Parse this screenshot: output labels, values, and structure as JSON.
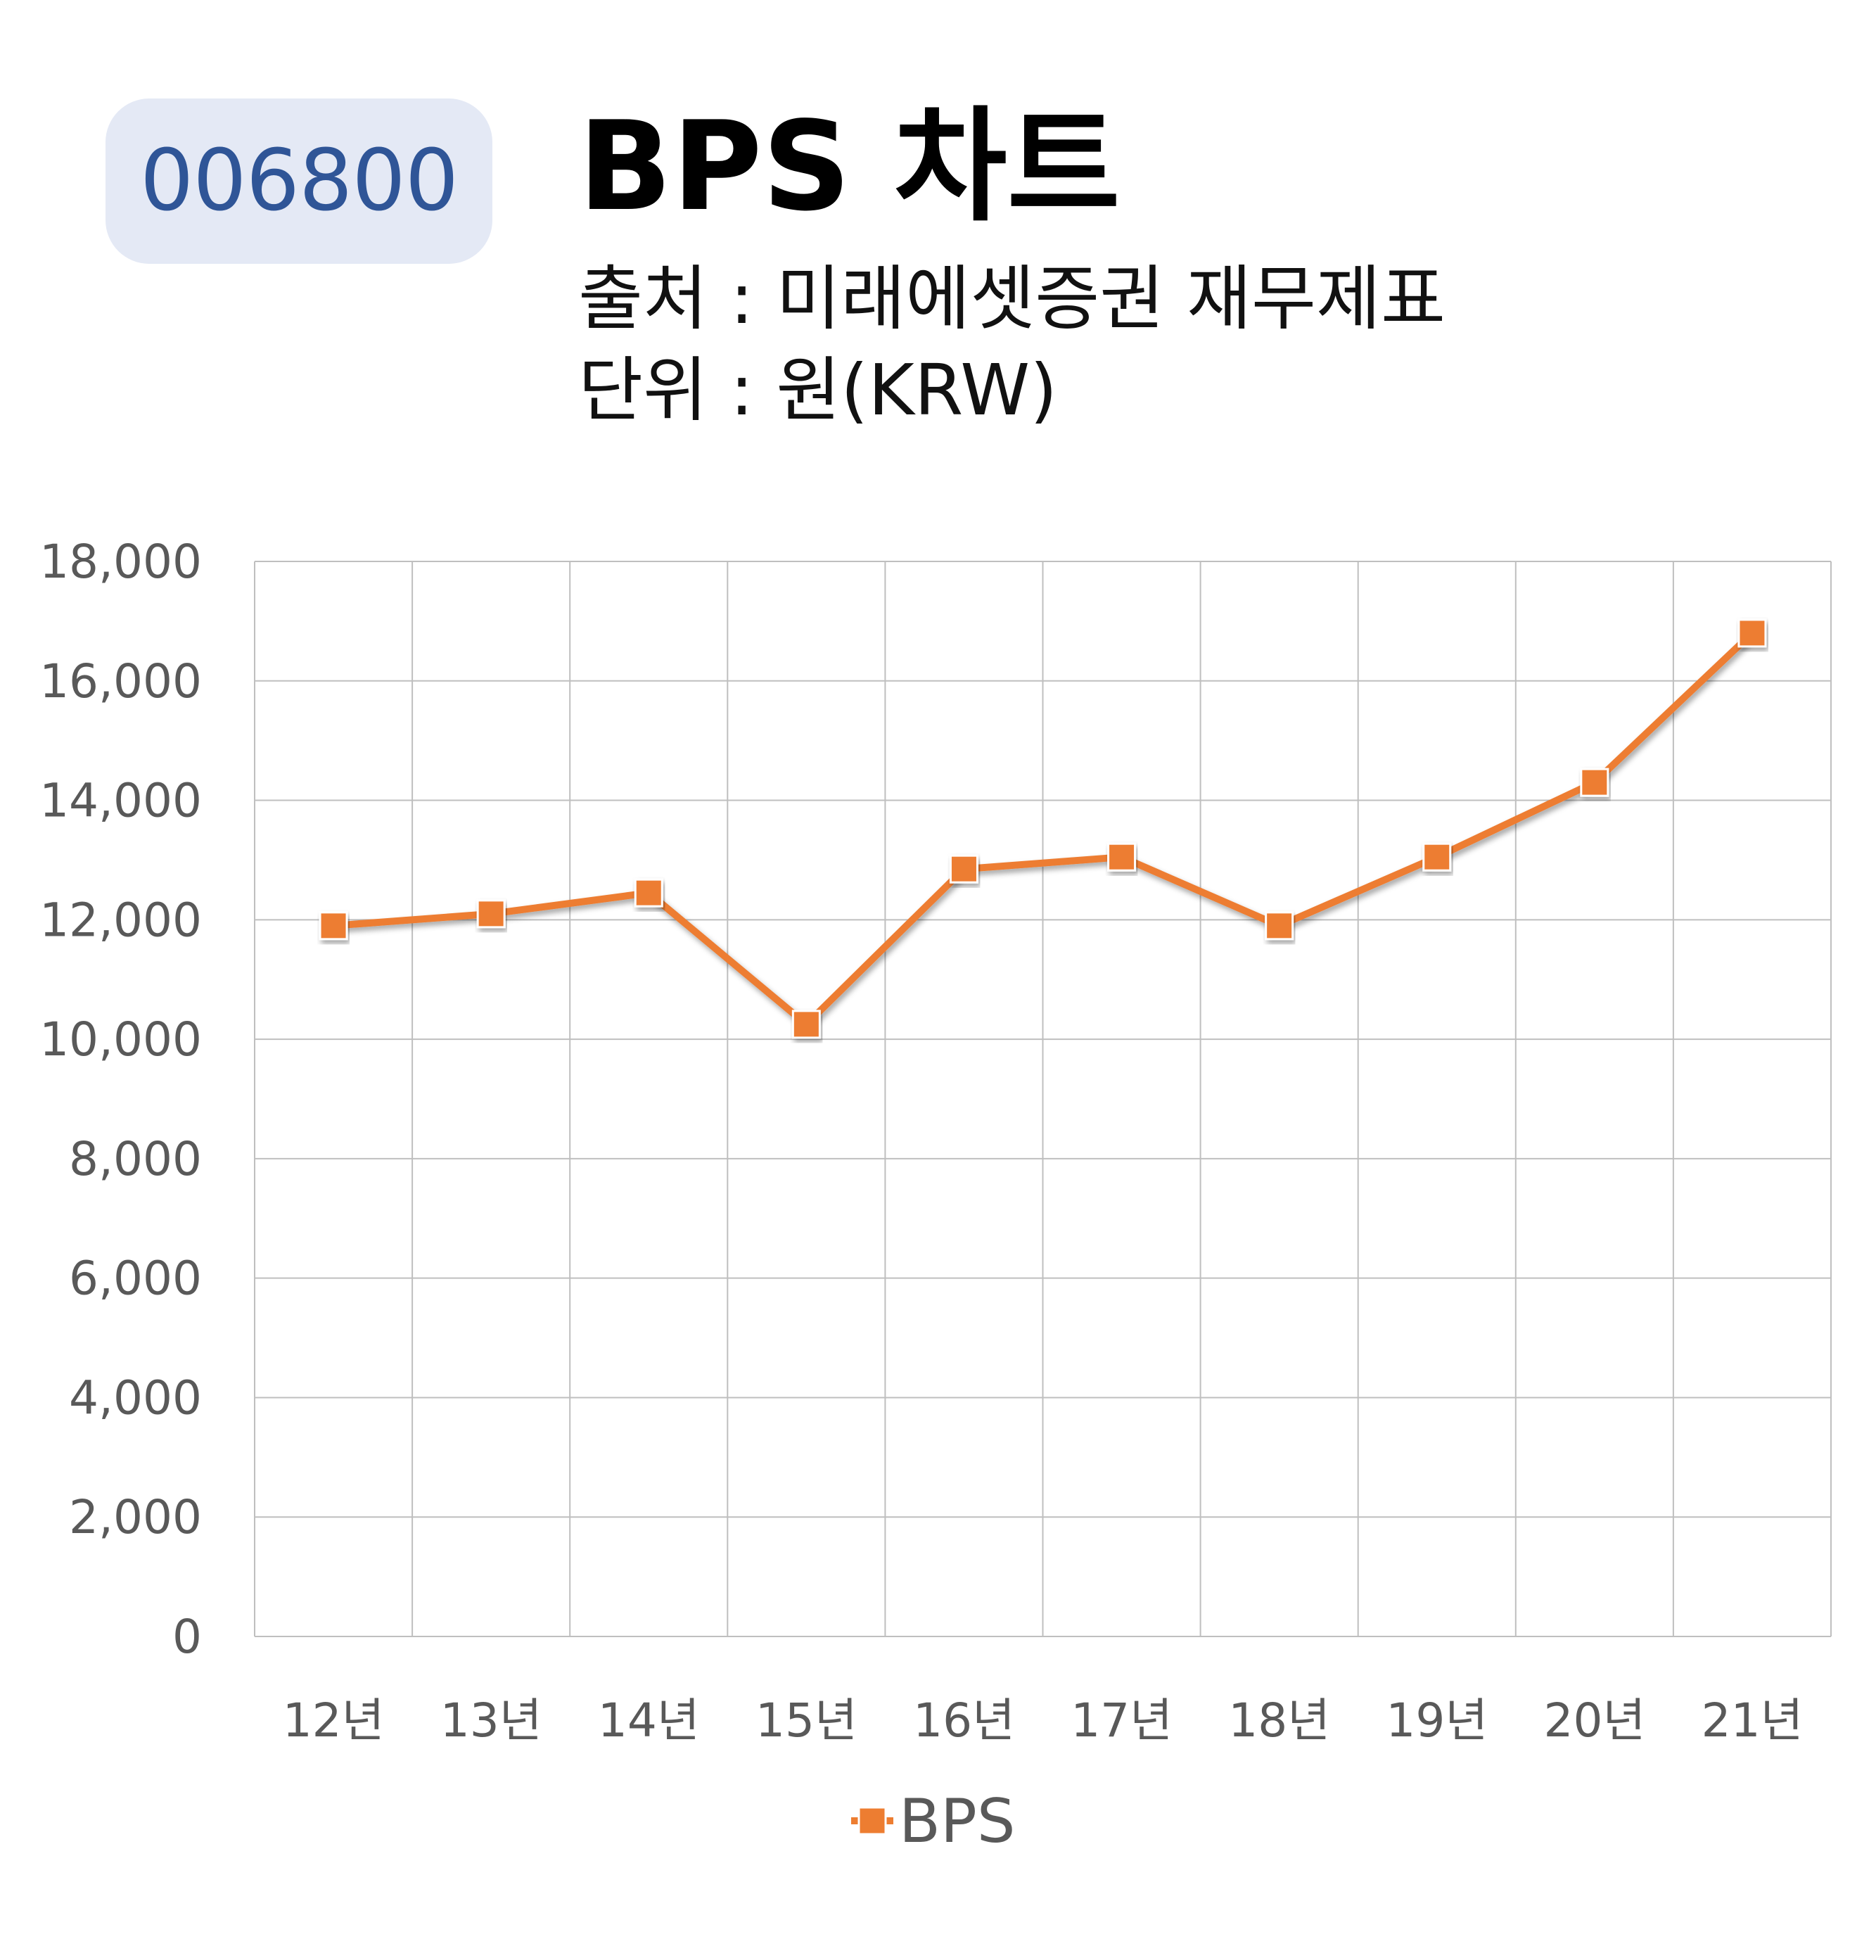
{
  "header": {
    "ticker": "006800",
    "title": "BPS 차트",
    "source": "출처 : 미래에셋증권 재무제표",
    "unit": "단위 : 원(KRW)"
  },
  "colors": {
    "badge_bg": "#e4e9f5",
    "badge_text": "#2f5597",
    "series": "#ed7d31",
    "grid": "#bfbfbf",
    "axis_text": "#595959"
  },
  "chart_data": {
    "type": "line",
    "categories": [
      "12년",
      "13년",
      "14년",
      "15년",
      "16년",
      "17년",
      "18년",
      "19년",
      "20년",
      "21년"
    ],
    "series": [
      {
        "name": "BPS",
        "values": [
          11900,
          12100,
          12450,
          10250,
          12850,
          13050,
          11900,
          13050,
          14300,
          16800
        ]
      }
    ],
    "ylim": [
      0,
      18000
    ],
    "yticks": [
      0,
      2000,
      4000,
      6000,
      8000,
      10000,
      12000,
      14000,
      16000,
      18000
    ],
    "ytick_labels": [
      "0",
      "2,000",
      "4,000",
      "6,000",
      "8,000",
      "10,000",
      "12,000",
      "14,000",
      "16,000",
      "18,000"
    ],
    "grid": true,
    "legend": "bottom",
    "marker": "square"
  }
}
